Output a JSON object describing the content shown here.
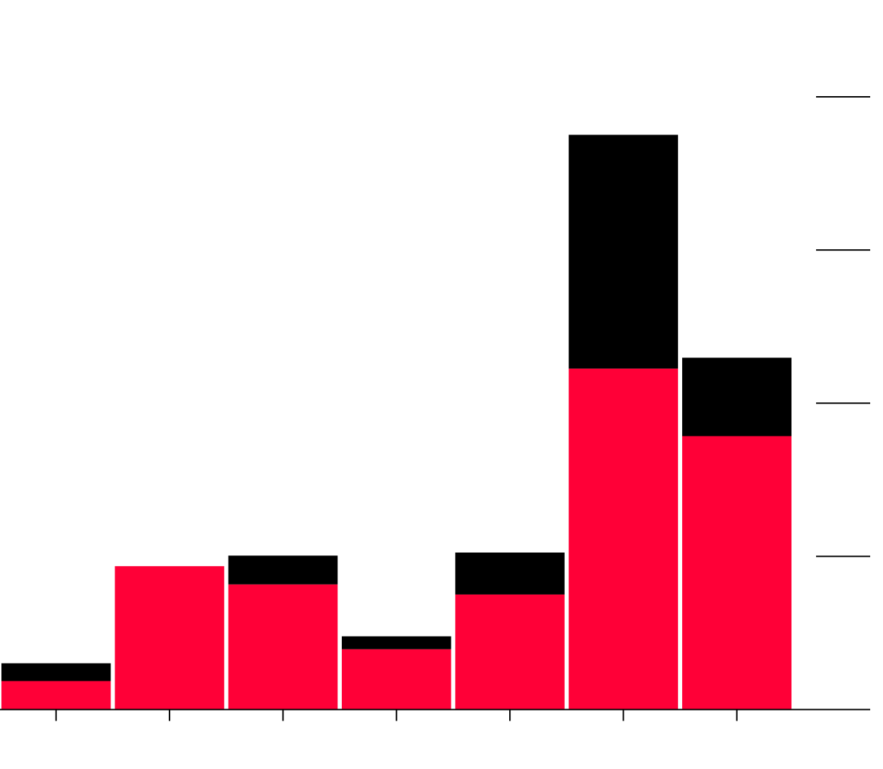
{
  "chart_data": {
    "type": "bar",
    "stacked": true,
    "categories": [
      "",
      "",
      "",
      "",
      "",
      "",
      ""
    ],
    "series": [
      {
        "values": [
          18.6,
          93.6,
          81.7,
          39.4,
          75.1,
          222.6,
          178.5
        ],
        "color": "#ff0037"
      },
      {
        "values": [
          11.6,
          0,
          18.8,
          8.4,
          27.4,
          152.6,
          51.2
        ],
        "color": "#000000"
      }
    ],
    "ylim": [
      0,
      400
    ],
    "yticks": [
      0,
      100,
      200,
      300,
      400
    ],
    "y_axis_position": "right",
    "tick_labels_visible": false,
    "grid": false
  }
}
